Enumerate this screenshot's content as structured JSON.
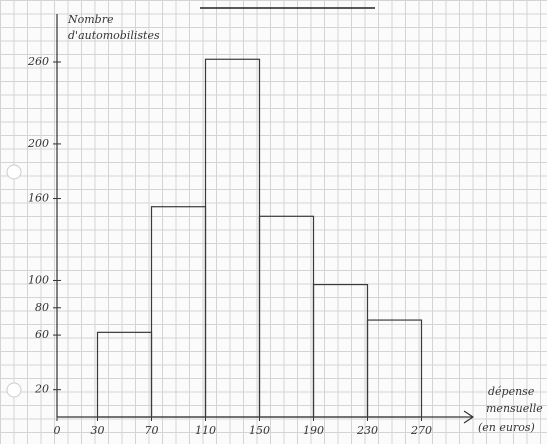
{
  "chart_data": {
    "type": "histogram",
    "ylabel": [
      "Nombre",
      "d'automobilistes"
    ],
    "xlabel": [
      "dépense",
      "mensuelle",
      "(en euros)"
    ],
    "bins": [
      30,
      70,
      110,
      150,
      190,
      230,
      270
    ],
    "values": [
      62,
      154,
      262,
      147,
      97,
      71
    ],
    "color": "#3a3a3a",
    "xlim": [
      0,
      300
    ],
    "xticks": [
      0,
      30,
      70,
      110,
      150,
      190,
      230,
      270
    ],
    "ylim": [
      0,
      260
    ],
    "yticks": [
      20,
      60,
      80,
      100,
      160,
      200,
      260
    ],
    "grid": true
  }
}
